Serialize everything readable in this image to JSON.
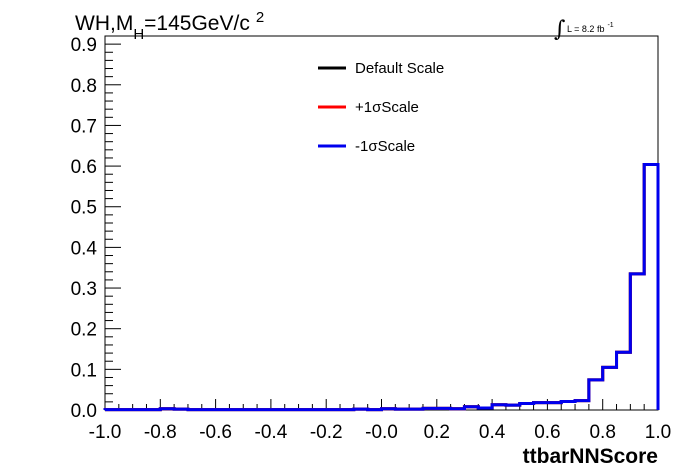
{
  "chart_data": {
    "type": "line",
    "title": {
      "main": "WH,M",
      "sub": "H",
      "rest": "=145GeV/c",
      "sup": "2"
    },
    "lumi": {
      "integral_symbol": "∫",
      "text": "L = 8.2 fb",
      "sup": "-1"
    },
    "xlabel": "ttbarNNScore",
    "ylabel": "",
    "xlim": [
      -1.0,
      1.0
    ],
    "ylim": [
      0.0,
      0.92
    ],
    "x_ticks": [
      "-1.0",
      "-0.8",
      "-0.6",
      "-0.4",
      "-0.2",
      "-0.0",
      "0.2",
      "0.4",
      "0.6",
      "0.8",
      "1.0"
    ],
    "y_ticks": [
      "0.0",
      "0.1",
      "0.2",
      "0.3",
      "0.4",
      "0.5",
      "0.6",
      "0.7",
      "0.8",
      "0.9"
    ],
    "bin_edges": [
      -1.0,
      -0.95,
      -0.9,
      -0.85,
      -0.8,
      -0.75,
      -0.7,
      -0.65,
      -0.6,
      -0.55,
      -0.5,
      -0.45,
      -0.4,
      -0.35,
      -0.3,
      -0.25,
      -0.2,
      -0.15,
      -0.1,
      -0.05,
      0.0,
      0.05,
      0.1,
      0.15,
      0.2,
      0.25,
      0.3,
      0.35,
      0.4,
      0.45,
      0.5,
      0.55,
      0.6,
      0.65,
      0.7,
      0.75,
      0.8,
      0.85,
      0.9,
      0.95,
      1.0
    ],
    "series": [
      {
        "name": "Default Scale",
        "color": "#000000",
        "values": [
          0.001,
          0.001,
          0.001,
          0.001,
          0.003,
          0.002,
          0.001,
          0.001,
          0.001,
          0.001,
          0.001,
          0.001,
          0.001,
          0.001,
          0.001,
          0.001,
          0.001,
          0.001,
          0.002,
          0.001,
          0.003,
          0.002,
          0.002,
          0.004,
          0.004,
          0.003,
          0.008,
          0.005,
          0.013,
          0.012,
          0.016,
          0.018,
          0.018,
          0.021,
          0.023,
          0.074,
          0.105,
          0.142,
          0.335,
          0.604
        ]
      },
      {
        "name": "+1σScale",
        "color": "#ff0000",
        "values": [
          0.001,
          0.001,
          0.001,
          0.001,
          0.003,
          0.002,
          0.001,
          0.001,
          0.001,
          0.001,
          0.001,
          0.001,
          0.001,
          0.001,
          0.001,
          0.001,
          0.001,
          0.001,
          0.002,
          0.001,
          0.003,
          0.002,
          0.002,
          0.004,
          0.004,
          0.003,
          0.008,
          0.005,
          0.013,
          0.012,
          0.016,
          0.018,
          0.018,
          0.021,
          0.023,
          0.074,
          0.105,
          0.142,
          0.335,
          0.604
        ]
      },
      {
        "name": "-1σScale",
        "color": "#0000ee",
        "values": [
          0.001,
          0.001,
          0.001,
          0.001,
          0.003,
          0.002,
          0.001,
          0.001,
          0.001,
          0.001,
          0.001,
          0.001,
          0.001,
          0.001,
          0.001,
          0.001,
          0.001,
          0.001,
          0.002,
          0.001,
          0.003,
          0.002,
          0.002,
          0.004,
          0.004,
          0.003,
          0.008,
          0.005,
          0.013,
          0.012,
          0.016,
          0.018,
          0.018,
          0.021,
          0.023,
          0.074,
          0.105,
          0.142,
          0.335,
          0.604
        ]
      }
    ],
    "legend_position": "top-center",
    "grid": false
  }
}
